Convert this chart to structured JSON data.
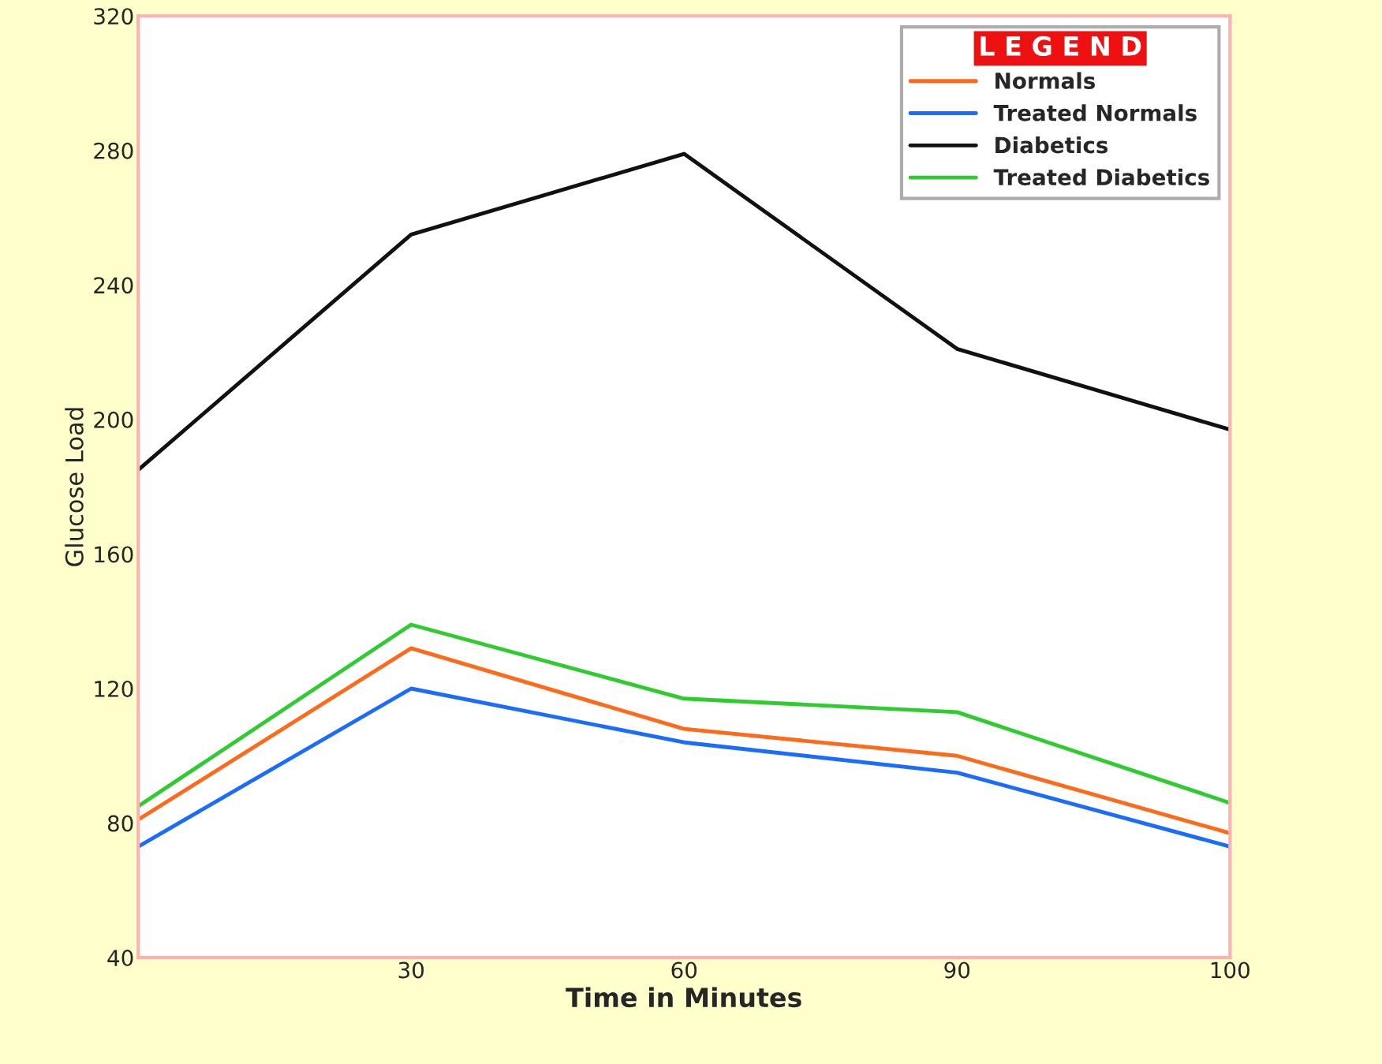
{
  "chart_data": {
    "type": "line",
    "xlabel": "Time in Minutes",
    "ylabel": "Glucose Load",
    "legend_title": "L E G E N D",
    "categories": [
      null,
      "30",
      "60",
      "90",
      "100"
    ],
    "series": [
      {
        "name": "Normals",
        "color": "#ff6a1a",
        "values": [
          81,
          132,
          108,
          100,
          77
        ]
      },
      {
        "name": "Treated Normals",
        "color": "#1a6cff",
        "values": [
          73,
          120,
          104,
          95,
          73
        ]
      },
      {
        "name": "Diabetics",
        "color": "#111111",
        "values": [
          185,
          255,
          279,
          221,
          197
        ]
      },
      {
        "name": "Treated Diabetics",
        "color": "#2ecc2e",
        "values": [
          85,
          139,
          117,
          113,
          86
        ]
      }
    ],
    "ylim": [
      40,
      320
    ],
    "yticks": [
      40,
      80,
      120,
      160,
      200,
      240,
      280,
      320
    ],
    "grid": false,
    "legend": "top right",
    "marker": "none",
    "line_style": "solid"
  }
}
